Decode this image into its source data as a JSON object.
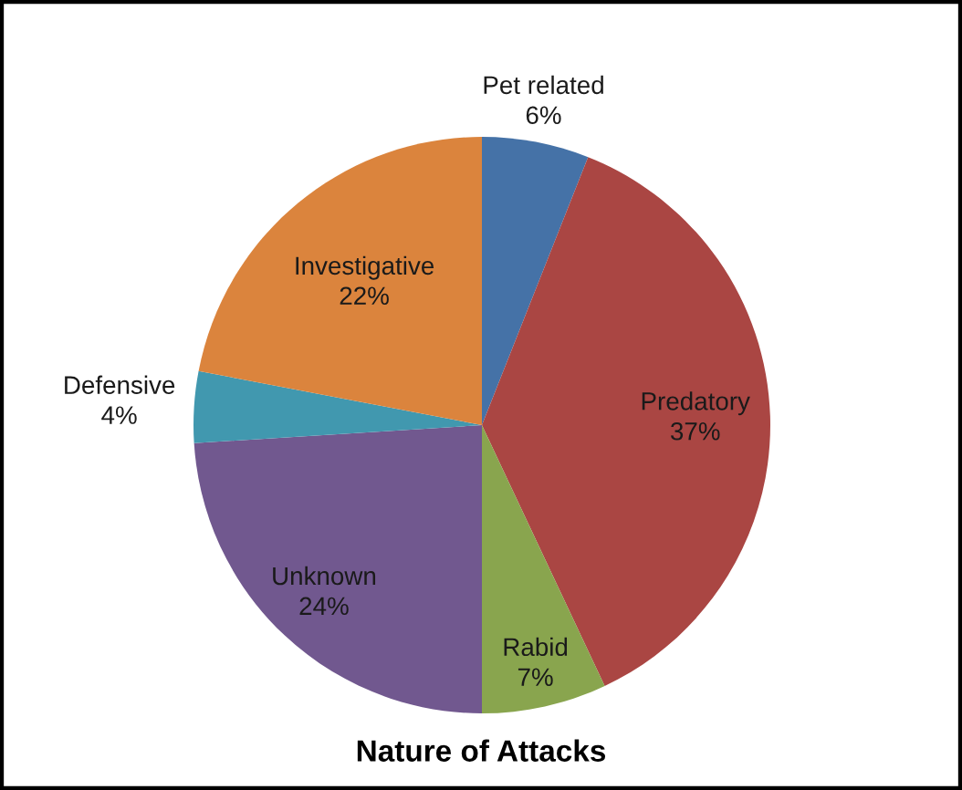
{
  "chart_data": {
    "type": "pie",
    "title": "Nature of Attacks",
    "categories": [
      "Pet related",
      "Predatory",
      "Rabid",
      "Unknown",
      "Defensive",
      "Investigative"
    ],
    "values": [
      6,
      37,
      7,
      24,
      4,
      22
    ],
    "value_labels": [
      "6%",
      "37%",
      "7%",
      "24%",
      "4%",
      "22%"
    ],
    "colors": [
      "#4572a7",
      "#aa4643",
      "#89a54e",
      "#71588f",
      "#4198af",
      "#db843d"
    ]
  }
}
